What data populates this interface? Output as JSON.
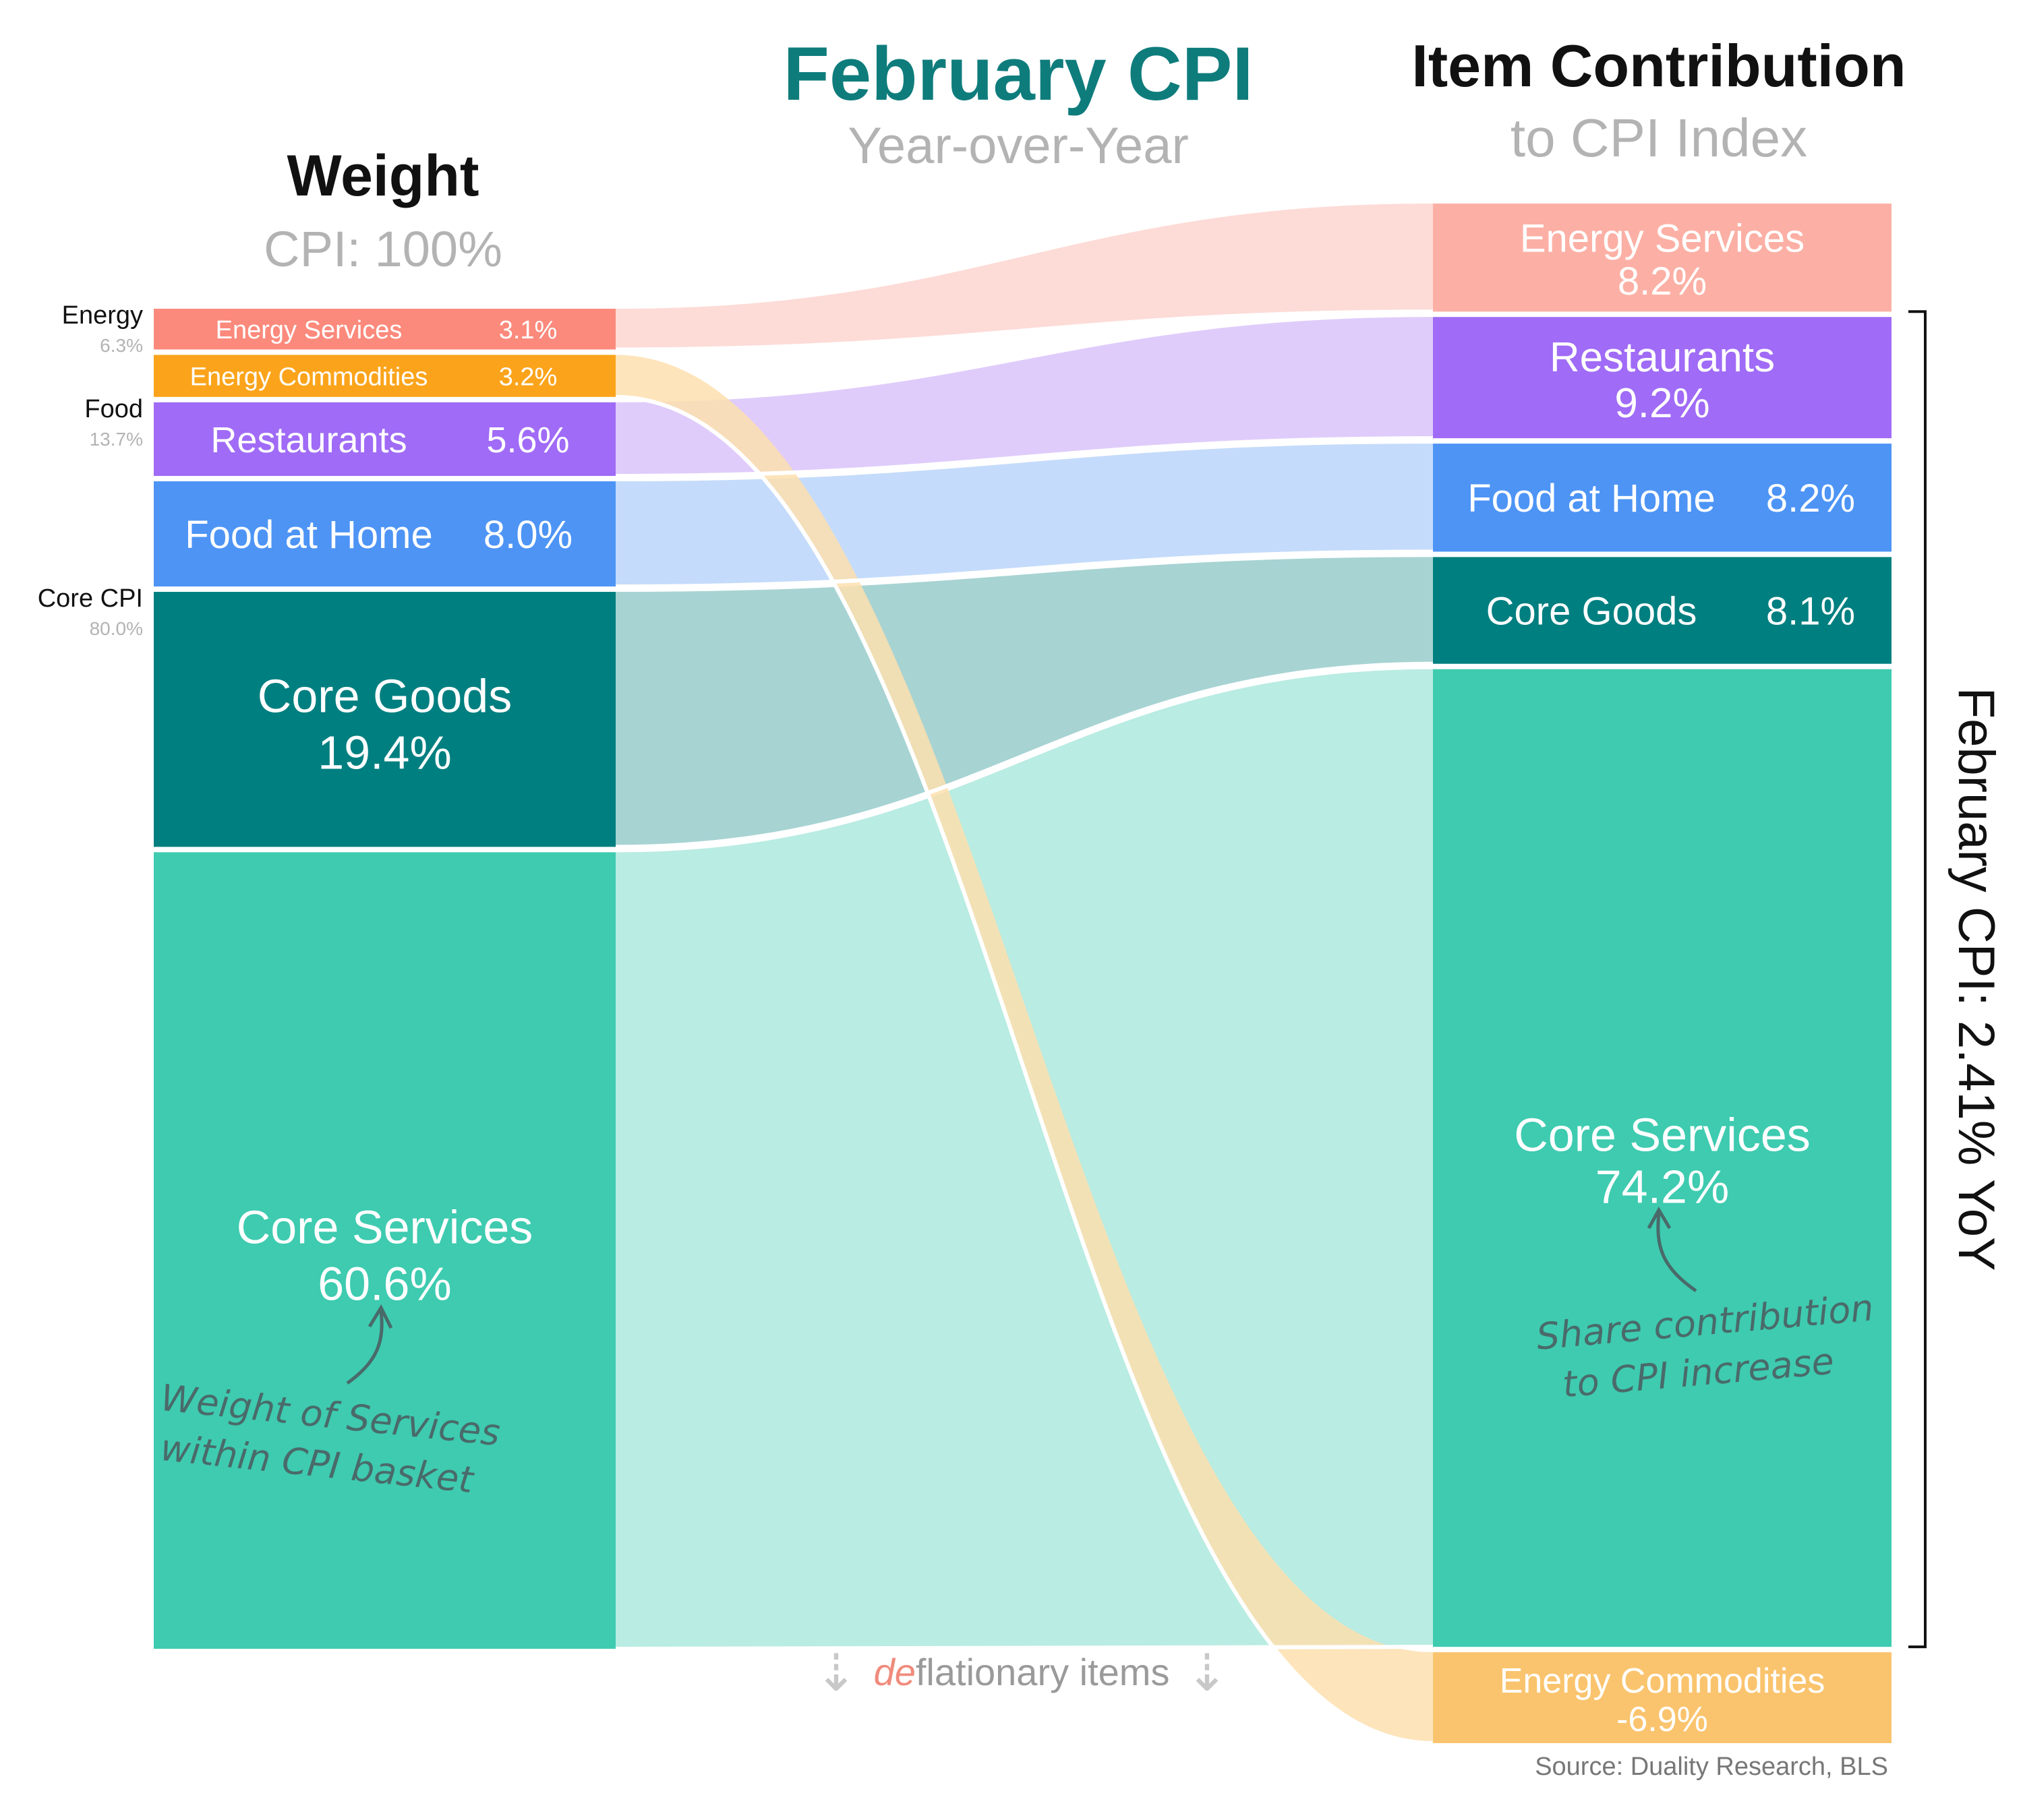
{
  "chart_data": {
    "type": "sankey",
    "title": "February CPI",
    "subtitle": "Year-over-Year",
    "left_column": {
      "title": "Weight",
      "subtitle": "CPI: 100%",
      "groups": [
        {
          "name": "Energy",
          "value": "6.3%"
        },
        {
          "name": "Food",
          "value": "13.7%"
        },
        {
          "name": "Core CPI",
          "value": "80.0%"
        }
      ],
      "nodes": [
        {
          "label": "Energy Services",
          "value": 3.1,
          "display": "3.1%",
          "color": "#FB8A7C",
          "flow_color": "#FDDBD6"
        },
        {
          "label": "Energy Commodities",
          "value": 3.2,
          "display": "3.2%",
          "color": "#FBA41B",
          "flow_color": "#FDDFAE"
        },
        {
          "label": "Restaurants",
          "value": 5.6,
          "display": "5.6%",
          "color": "#A06BF6",
          "flow_color": "#DFCCFB"
        },
        {
          "label": "Food at Home",
          "value": 8.0,
          "display": "8.0%",
          "color": "#4D94F5",
          "flow_color": "#C4DBFB"
        },
        {
          "label": "Core Goods",
          "value": 19.4,
          "display": "19.4%",
          "color": "#007F80",
          "flow_color": "#A7D3D3"
        },
        {
          "label": "Core Services",
          "value": 60.6,
          "display": "60.6%",
          "color": "#3ECBB0",
          "flow_color": "#B9ECE2"
        }
      ]
    },
    "right_column": {
      "title": "Item Contribution",
      "subtitle": "to CPI Index",
      "nodes": [
        {
          "label": "Energy Services",
          "value": 8.2,
          "display": "8.2%",
          "color": "#FCB0A5"
        },
        {
          "label": "Restaurants",
          "value": 9.2,
          "display": "9.2%",
          "color": "#A06BF6"
        },
        {
          "label": "Food at Home",
          "value": 8.2,
          "display": "8.2%",
          "color": "#4D94F5"
        },
        {
          "label": "Core Goods",
          "value": 8.1,
          "display": "8.1%",
          "color": "#007F80"
        },
        {
          "label": "Core Services",
          "value": 74.2,
          "display": "74.2%",
          "color": "#3ECBB0"
        },
        {
          "label": "Energy Commodities",
          "value": -6.9,
          "display": "-6.9%",
          "color": "#FAC46E"
        }
      ]
    },
    "total_label": "February CPI: 2.41% YoY",
    "deflation_note": {
      "prefix": "de",
      "rest": "flationary items",
      "arrow": "⇣"
    },
    "annotations": {
      "left": [
        "Weight of Services",
        "within CPI basket"
      ],
      "right": [
        "Share contribution",
        "to CPI increase"
      ]
    },
    "source": "Source: Duality Research, BLS"
  },
  "colors": {
    "title": "#0F7C7C",
    "subtitle": "#B3B3B3",
    "deflation_accent": "#F08B7C",
    "annotation": "#4A6A6A"
  }
}
